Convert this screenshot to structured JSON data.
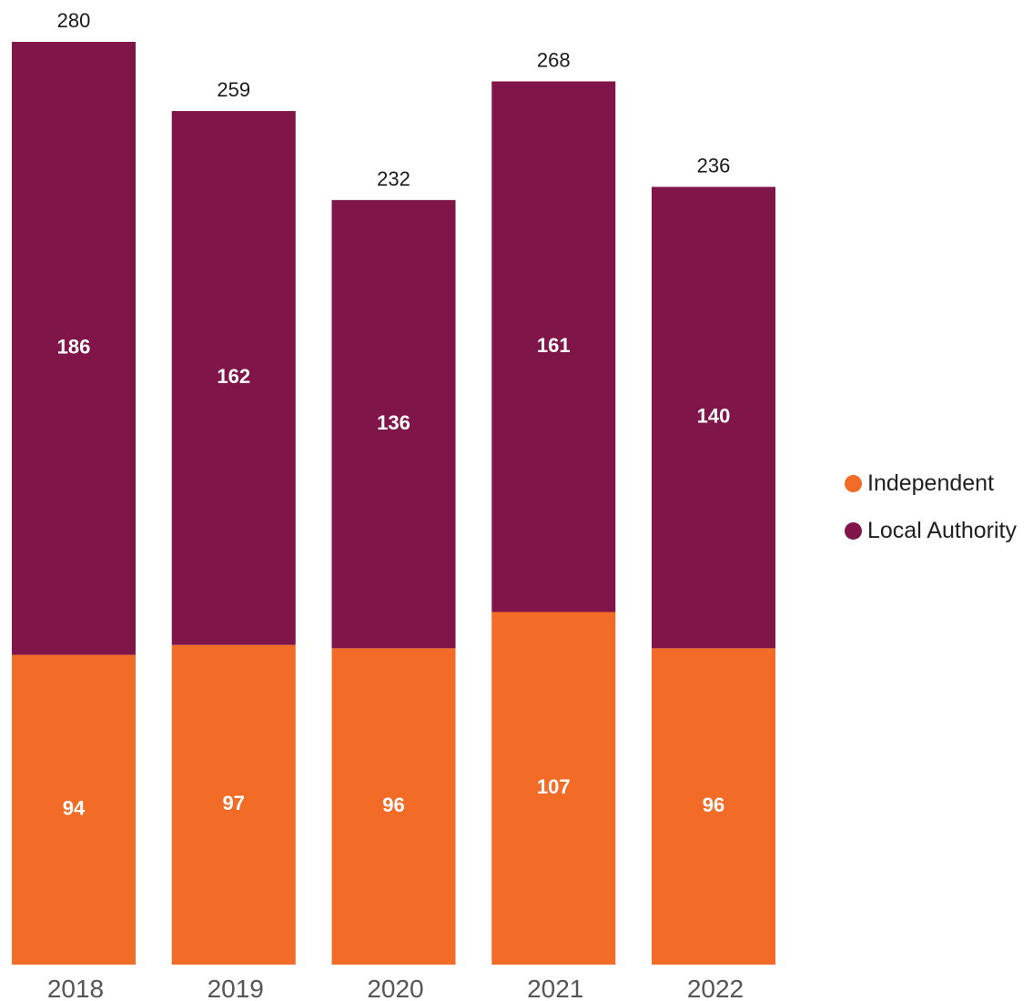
{
  "chart_data": {
    "type": "bar",
    "stacked": true,
    "categories": [
      "2018",
      "2019",
      "2020",
      "2021",
      "2022"
    ],
    "series": [
      {
        "name": "Independent",
        "color": "#f26b27",
        "values": [
          94,
          97,
          96,
          107,
          96
        ]
      },
      {
        "name": "Local Authority",
        "color": "#80154a",
        "values": [
          186,
          162,
          136,
          161,
          140
        ]
      }
    ],
    "totals": [
      "280",
      "259",
      "232",
      "268",
      "236"
    ],
    "title": "",
    "xlabel": "",
    "ylabel": "",
    "ylim": [
      0,
      280
    ],
    "grid": false,
    "legend_position": "right"
  }
}
